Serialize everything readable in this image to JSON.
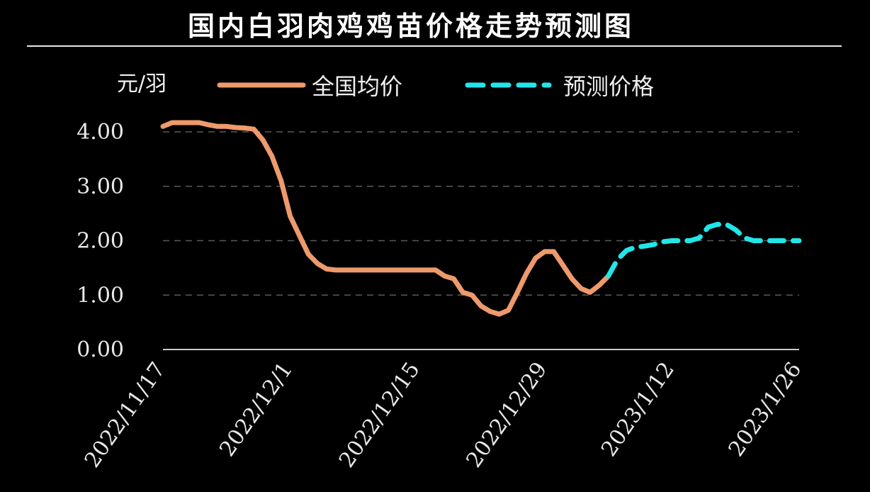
{
  "title": "国内白羽肉鸡鸡苗价格走势预测图",
  "chart_data": {
    "type": "line",
    "title": "国内白羽肉鸡鸡苗价格走势预测图",
    "ylabel": "元/羽",
    "ylim": [
      0,
      4.0
    ],
    "yticks": [
      "0.00",
      "1.00",
      "2.00",
      "3.00",
      "4.00"
    ],
    "ytick_values": [
      0,
      1,
      2,
      3,
      4
    ],
    "xlim": [
      "2022-11-17",
      "2023-01-26"
    ],
    "xticks": [
      "2022/11/17",
      "2022/12/1",
      "2022/12/15",
      "2022/12/29",
      "2023/1/12",
      "2023/1/26"
    ],
    "xtick_dates": [
      "2022-11-17",
      "2022-12-01",
      "2022-12-15",
      "2022-12-29",
      "2023-01-12",
      "2023-01-26"
    ],
    "grid": "horizontal dashed",
    "legend_position": "top",
    "series": [
      {
        "name": "全国均价",
        "color": "#ee9a6c",
        "style": "solid",
        "points": [
          [
            "2022-11-17",
            4.1
          ],
          [
            "2022-11-18",
            4.17
          ],
          [
            "2022-11-20",
            4.17
          ],
          [
            "2022-11-21",
            4.17
          ],
          [
            "2022-11-22",
            4.13
          ],
          [
            "2022-11-23",
            4.1
          ],
          [
            "2022-11-24",
            4.1
          ],
          [
            "2022-11-25",
            4.08
          ],
          [
            "2022-11-26",
            4.07
          ],
          [
            "2022-11-27",
            4.05
          ],
          [
            "2022-11-28",
            3.85
          ],
          [
            "2022-11-29",
            3.55
          ],
          [
            "2022-11-30",
            3.1
          ],
          [
            "2022-12-01",
            2.45
          ],
          [
            "2022-12-02",
            2.1
          ],
          [
            "2022-12-03",
            1.75
          ],
          [
            "2022-12-04",
            1.58
          ],
          [
            "2022-12-05",
            1.48
          ],
          [
            "2022-12-06",
            1.46
          ],
          [
            "2022-12-08",
            1.46
          ],
          [
            "2022-12-10",
            1.46
          ],
          [
            "2022-12-12",
            1.46
          ],
          [
            "2022-12-14",
            1.46
          ],
          [
            "2022-12-16",
            1.46
          ],
          [
            "2022-12-17",
            1.46
          ],
          [
            "2022-12-18",
            1.35
          ],
          [
            "2022-12-19",
            1.3
          ],
          [
            "2022-12-20",
            1.05
          ],
          [
            "2022-12-21",
            1.0
          ],
          [
            "2022-12-22",
            0.8
          ],
          [
            "2022-12-23",
            0.7
          ],
          [
            "2022-12-24",
            0.65
          ],
          [
            "2022-12-25",
            0.72
          ],
          [
            "2022-12-26",
            1.05
          ],
          [
            "2022-12-27",
            1.4
          ],
          [
            "2022-12-28",
            1.68
          ],
          [
            "2022-12-29",
            1.8
          ],
          [
            "2022-12-30",
            1.8
          ],
          [
            "2022-12-31",
            1.55
          ],
          [
            "2023-01-01",
            1.3
          ],
          [
            "2023-01-02",
            1.12
          ],
          [
            "2023-01-03",
            1.05
          ],
          [
            "2023-01-04",
            1.18
          ],
          [
            "2023-01-05",
            1.35
          ]
        ]
      },
      {
        "name": "预测价格",
        "color": "#22e5ea",
        "style": "dashed",
        "points": [
          [
            "2023-01-05",
            1.35
          ],
          [
            "2023-01-06",
            1.65
          ],
          [
            "2023-01-07",
            1.82
          ],
          [
            "2023-01-08",
            1.88
          ],
          [
            "2023-01-09",
            1.9
          ],
          [
            "2023-01-10",
            1.93
          ],
          [
            "2023-01-11",
            1.98
          ],
          [
            "2023-01-12",
            2.0
          ],
          [
            "2023-01-13",
            2.0
          ],
          [
            "2023-01-14",
            2.0
          ],
          [
            "2023-01-15",
            2.05
          ],
          [
            "2023-01-16",
            2.25
          ],
          [
            "2023-01-17",
            2.3
          ],
          [
            "2023-01-18",
            2.3
          ],
          [
            "2023-01-19",
            2.2
          ],
          [
            "2023-01-20",
            2.05
          ],
          [
            "2023-01-21",
            2.0
          ],
          [
            "2023-01-22",
            2.0
          ],
          [
            "2023-01-23",
            2.0
          ],
          [
            "2023-01-24",
            2.0
          ],
          [
            "2023-01-25",
            2.0
          ],
          [
            "2023-01-26",
            2.0
          ]
        ]
      }
    ]
  }
}
